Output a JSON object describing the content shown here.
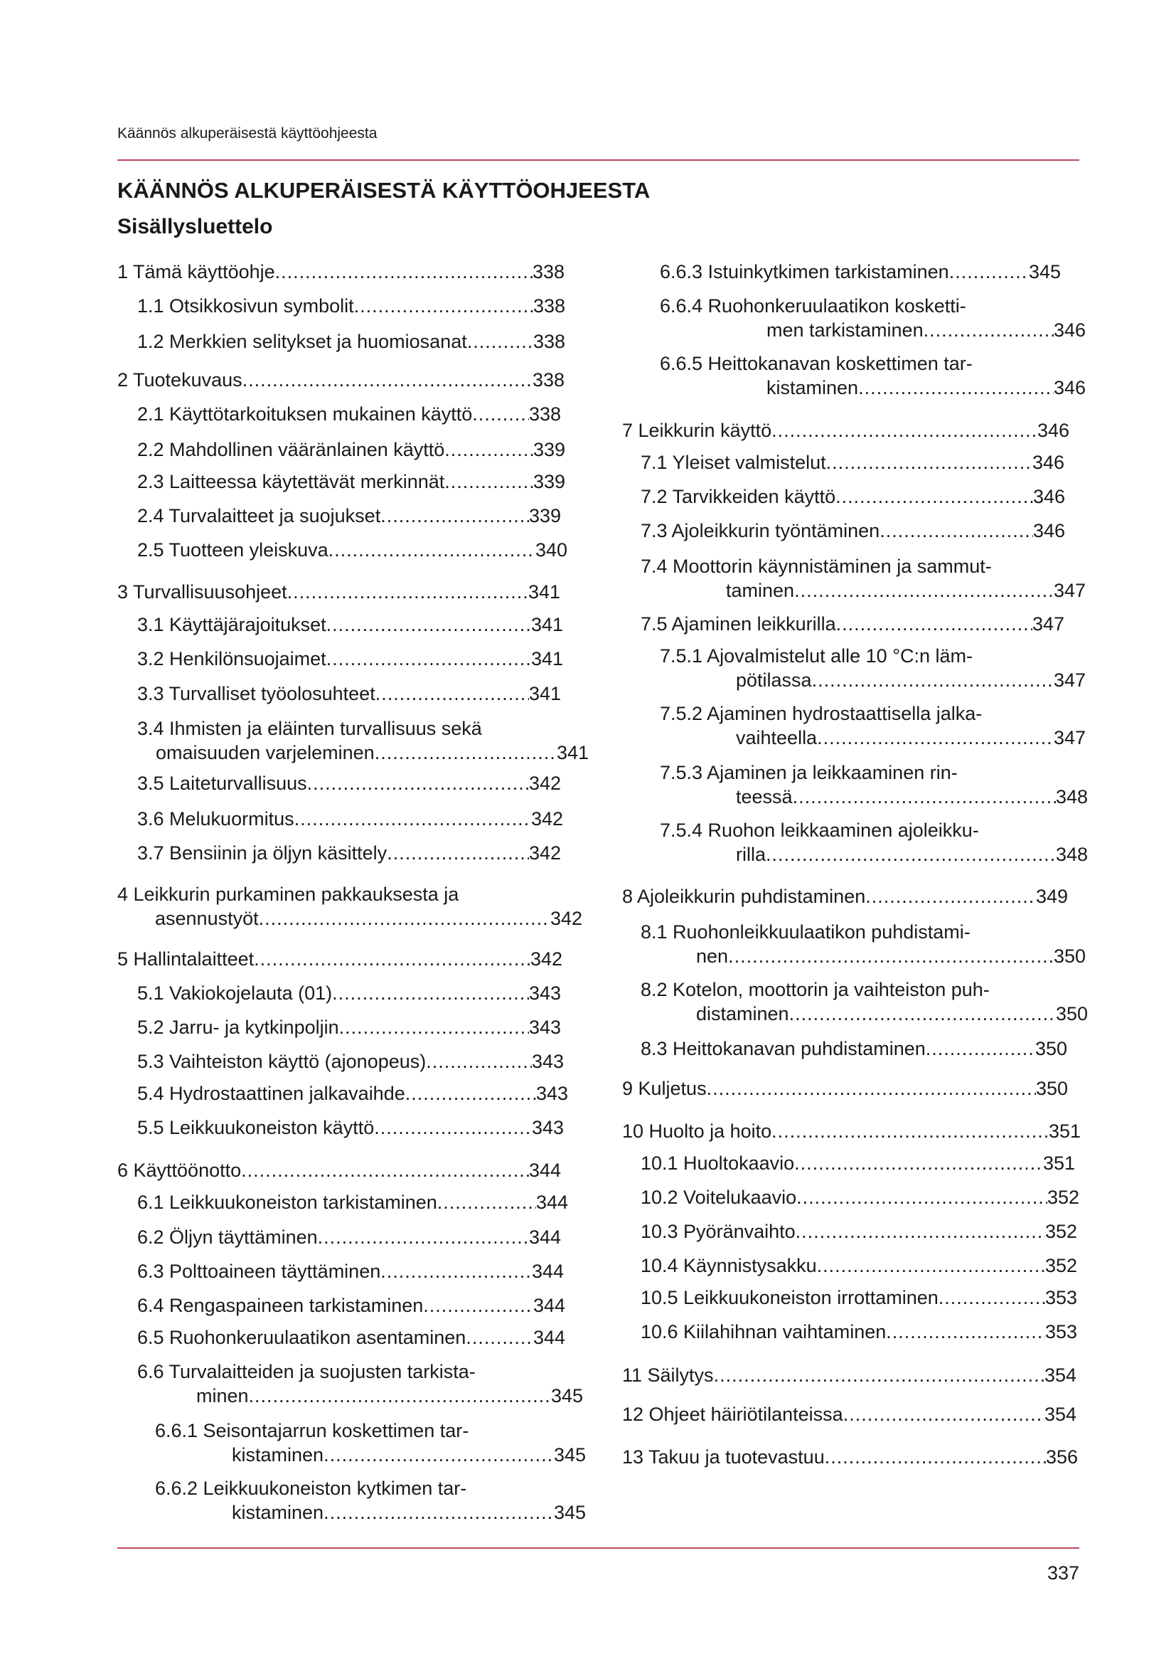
{
  "header": {
    "running_title": "Käännös alkuperäisestä käyttöohjeesta",
    "accent_color": "#c0485c"
  },
  "title": "KÄÄNNÖS ALKUPERÄISESTÄ KÄYTTÖOHJEESTA",
  "subtitle": "Sisällysluettelo",
  "toc": {
    "left": [
      {
        "lines": [
          "1 Tämä käyttöohje"
        ],
        "page": "338"
      },
      {
        "lines": [
          "1.1 Otsikkosivun symbolit"
        ],
        "page": "338"
      },
      {
        "lines": [
          "1.2 Merkkien selitykset ja huomiosanat"
        ],
        "page": "338"
      },
      {
        "lines": [
          "2 Tuotekuvaus"
        ],
        "page": "338"
      },
      {
        "lines": [
          "2.1 Käyttötarkoituksen mukainen käyttö"
        ],
        "page": "338"
      },
      {
        "lines": [
          "2.2 Mahdollinen vääränlainen käyttö"
        ],
        "page": "339"
      },
      {
        "lines": [
          "2.3 Laitteessa käytettävät merkinnät"
        ],
        "page": "339"
      },
      {
        "lines": [
          "2.4 Turvalaitteet ja suojukset"
        ],
        "page": "339"
      },
      {
        "lines": [
          "2.5 Tuotteen yleiskuva"
        ],
        "page": "340"
      },
      {
        "lines": [
          "3 Turvallisuusohjeet"
        ],
        "page": "341"
      },
      {
        "lines": [
          "3.1 Käyttäjärajoitukset"
        ],
        "page": "341"
      },
      {
        "lines": [
          "3.2 Henkilönsuojaimet"
        ],
        "page": "341"
      },
      {
        "lines": [
          "3.3 Turvalliset työolosuhteet"
        ],
        "page": "341"
      },
      {
        "lines": [
          "3.4 Ihmisten ja eläinten turvallisuus sekä",
          "omaisuuden varjeleminen"
        ],
        "page": "341"
      },
      {
        "lines": [
          "3.5 Laiteturvallisuus"
        ],
        "page": "342"
      },
      {
        "lines": [
          "3.6 Melukuormitus"
        ],
        "page": "342"
      },
      {
        "lines": [
          "3.7 Bensiinin ja öljyn käsittely"
        ],
        "page": "342"
      },
      {
        "lines": [
          "4 Leikkurin purkaminen pakkauksesta ja",
          "asennustyöt"
        ],
        "page": "342"
      },
      {
        "lines": [
          "5 Hallintalaitteet"
        ],
        "page": "342"
      },
      {
        "lines": [
          "5.1 Vakiokojelauta (01)"
        ],
        "page": "343"
      },
      {
        "lines": [
          "5.2 Jarru- ja kytkinpoljin"
        ],
        "page": "343"
      },
      {
        "lines": [
          "5.3 Vaihteiston käyttö (ajonopeus)"
        ],
        "page": "343"
      },
      {
        "lines": [
          "5.4 Hydrostaattinen jalkavaihde"
        ],
        "page": "343"
      },
      {
        "lines": [
          "5.5 Leikkuukoneiston käyttö"
        ],
        "page": "343"
      },
      {
        "lines": [
          "6 Käyttöönotto"
        ],
        "page": "344"
      },
      {
        "lines": [
          "6.1 Leikkuukoneiston tarkistaminen"
        ],
        "page": "344"
      },
      {
        "lines": [
          "6.2 Öljyn täyttäminen"
        ],
        "page": "344"
      },
      {
        "lines": [
          "6.3 Polttoaineen täyttäminen"
        ],
        "page": "344"
      },
      {
        "lines": [
          "6.4 Rengaspaineen tarkistaminen"
        ],
        "page": "344"
      },
      {
        "lines": [
          "6.5 Ruohonkeruulaatikon asentaminen"
        ],
        "page": "344"
      },
      {
        "lines": [
          "6.6 Turvalaitteiden ja suojusten tarkista-",
          "minen"
        ],
        "page": "345"
      },
      {
        "lines": [
          "6.6.1 Seisontajarrun koskettimen tar-",
          "kistaminen"
        ],
        "page": "345"
      },
      {
        "lines": [
          "6.6.2 Leikkuukoneiston kytkimen tar-",
          "kistaminen"
        ],
        "page": "345"
      }
    ],
    "right": [
      {
        "lines": [
          "6.6.3 Istuinkytkimen tarkistaminen"
        ],
        "page": "345"
      },
      {
        "lines": [
          "6.6.4 Ruohonkeruulaatikon kosketti-",
          "men tarkistaminen"
        ],
        "page": "346"
      },
      {
        "lines": [
          "6.6.5 Heittokanavan koskettimen tar-",
          "kistaminen"
        ],
        "page": "346"
      },
      {
        "lines": [
          "7 Leikkurin käyttö"
        ],
        "page": "346"
      },
      {
        "lines": [
          "7.1 Yleiset valmistelut"
        ],
        "page": "346"
      },
      {
        "lines": [
          "7.2 Tarvikkeiden käyttö"
        ],
        "page": "346"
      },
      {
        "lines": [
          "7.3 Ajoleikkurin työntäminen"
        ],
        "page": "346"
      },
      {
        "lines": [
          "7.4 Moottorin käynnistäminen ja sammut-",
          "taminen"
        ],
        "page": "347"
      },
      {
        "lines": [
          "7.5 Ajaminen leikkurilla"
        ],
        "page": "347"
      },
      {
        "lines": [
          "7.5.1 Ajovalmistelut alle 10 °C:n läm-",
          "pötilassa"
        ],
        "page": "347"
      },
      {
        "lines": [
          "7.5.2 Ajaminen hydrostaattisella jalka-",
          "vaihteella"
        ],
        "page": "347"
      },
      {
        "lines": [
          "7.5.3 Ajaminen ja leikkaaminen rin-",
          "teessä"
        ],
        "page": "348"
      },
      {
        "lines": [
          "7.5.4 Ruohon leikkaaminen ajoleikku-",
          "rilla"
        ],
        "page": "348"
      },
      {
        "lines": [
          "8 Ajoleikkurin puhdistaminen"
        ],
        "page": "349"
      },
      {
        "lines": [
          "8.1 Ruohonleikkuulaatikon puhdistami-",
          "nen"
        ],
        "page": "350"
      },
      {
        "lines": [
          "8.2 Kotelon, moottorin ja vaihteiston puh-",
          "distaminen"
        ],
        "page": "350"
      },
      {
        "lines": [
          "8.3 Heittokanavan puhdistaminen"
        ],
        "page": "350"
      },
      {
        "lines": [
          "9 Kuljetus"
        ],
        "page": "350"
      },
      {
        "lines": [
          "10 Huolto ja hoito"
        ],
        "page": "351"
      },
      {
        "lines": [
          "10.1 Huoltokaavio"
        ],
        "page": "351"
      },
      {
        "lines": [
          "10.2 Voitelukaavio"
        ],
        "page": "352"
      },
      {
        "lines": [
          "10.3 Pyöränvaihto"
        ],
        "page": "352"
      },
      {
        "lines": [
          "10.4 Käynnistysakku"
        ],
        "page": "352"
      },
      {
        "lines": [
          "10.5 Leikkuukoneiston irrottaminen"
        ],
        "page": "353"
      },
      {
        "lines": [
          "10.6 Kiilahihnan vaihtaminen"
        ],
        "page": "353"
      },
      {
        "lines": [
          "11 Säilytys"
        ],
        "page": "354"
      },
      {
        "lines": [
          "12 Ohjeet häiriötilanteissa"
        ],
        "page": "354"
      },
      {
        "lines": [
          "13 Takuu ja tuotevastuu"
        ],
        "page": "356"
      }
    ]
  },
  "footer": {
    "page_number": "337"
  }
}
